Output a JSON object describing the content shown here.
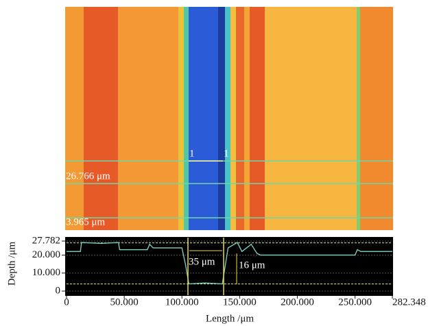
{
  "chart_data": {
    "type": "line",
    "xlabel": "Length /μm",
    "ylabel": "Depth /μm",
    "x": [
      0,
      12,
      13,
      30,
      45,
      46,
      70,
      72,
      75,
      100,
      103,
      106,
      120,
      135,
      137,
      140,
      148,
      152,
      160,
      165,
      168,
      200,
      250,
      252,
      255,
      260,
      282.348
    ],
    "values": [
      22,
      22,
      27,
      26.5,
      27,
      23,
      23,
      26,
      24,
      24,
      15,
      4,
      4.5,
      4,
      12,
      24,
      27,
      22,
      26,
      21,
      20,
      20,
      20,
      23,
      22,
      22,
      22
    ],
    "color": "#7fd6c8",
    "xlim": [
      0,
      282.348
    ],
    "ylim": [
      0,
      27.782
    ],
    "xticks": [
      0,
      {
        "value": 50,
        "label": "50.000"
      },
      {
        "value": 100,
        "label": "100.000"
      },
      {
        "value": 150,
        "label": "150.000"
      },
      {
        "value": 200,
        "label": "200.000"
      },
      {
        "value": 250,
        "label": "250.000"
      },
      282.348
    ],
    "yticks": [
      0,
      {
        "value": 10,
        "label": "10.000"
      },
      {
        "value": 20,
        "label": "20.000"
      },
      27.782
    ],
    "grid": true,
    "levels": [
      {
        "value": 26.766,
        "label": "26.766 μm"
      },
      {
        "value": 3.965,
        "label": "3.965 μm"
      }
    ],
    "annotations": [
      "1",
      "1",
      "35 μm",
      "16 μm"
    ]
  }
}
